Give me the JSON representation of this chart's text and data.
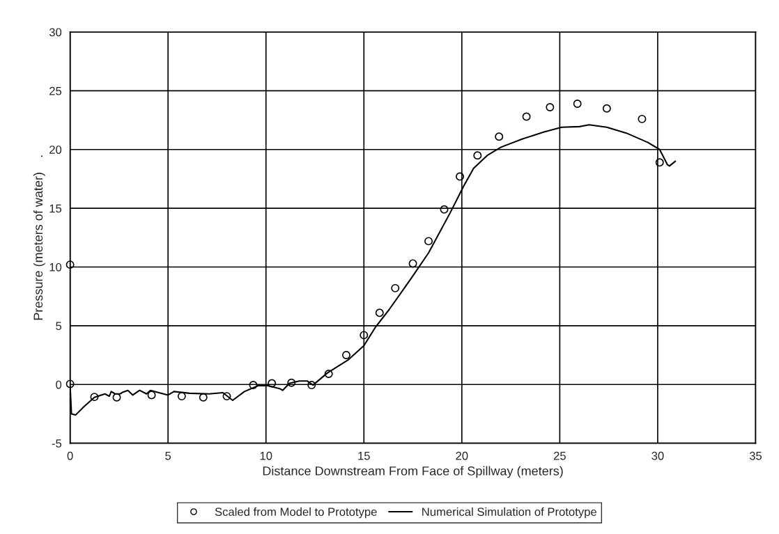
{
  "chart_data": {
    "type": "scatter",
    "xlabel": "Distance Downstream From Face of Spillway (meters)",
    "ylabel": "Pressure (meters of water)    .",
    "xlim": [
      0,
      35
    ],
    "xticks": [
      0,
      5,
      10,
      15,
      20,
      25,
      30,
      35
    ],
    "ylim": [
      -5,
      30
    ],
    "yticks": [
      -5,
      0,
      5,
      10,
      15,
      20,
      25,
      30
    ],
    "grid": true,
    "legend": "bottom",
    "series": [
      {
        "name": "Scaled from Model to Prototype",
        "marker": "circle",
        "color": "#000000",
        "x": [
          0,
          0,
          1.24,
          2.38,
          4.16,
          5.7,
          6.8,
          8.0,
          9.35,
          10.3,
          11.3,
          12.33,
          13.2,
          14.1,
          15.0,
          15.8,
          16.6,
          17.5,
          18.3,
          19.1,
          19.9,
          20.8,
          21.9,
          23.3,
          24.5,
          25.9,
          27.4,
          29.2,
          30.1
        ],
        "values": [
          10.2,
          0.05,
          -1.06,
          -1.1,
          -0.9,
          -1.0,
          -1.1,
          -1.0,
          -0.05,
          0.1,
          0.15,
          -0.05,
          0.9,
          2.5,
          4.2,
          6.1,
          8.2,
          10.3,
          12.2,
          14.9,
          17.7,
          19.5,
          21.1,
          22.8,
          23.6,
          23.9,
          23.5,
          22.6,
          18.9
        ]
      },
      {
        "name": "Numerical Simulation of Prototype",
        "type": "line",
        "marker": "none",
        "line_style": "solid",
        "color": "#000000",
        "x": [
          0,
          0.07,
          0.28,
          0.7,
          1.24,
          1.78,
          2.0,
          2.1,
          2.3,
          2.56,
          2.7,
          2.95,
          3.2,
          3.55,
          3.9,
          4.1,
          5.0,
          5.3,
          6.1,
          7.1,
          7.8,
          8.3,
          8.9,
          9.6,
          10.1,
          10.7,
          10.85,
          11.2,
          11.7,
          12.1,
          12.4,
          13.15,
          14.2,
          15.0,
          15.6,
          16.3,
          17.4,
          18.3,
          19.4,
          20.1,
          20.6,
          21.3,
          22.0,
          23.1,
          24.2,
          25.1,
          26.0,
          26.5,
          27.4,
          28.4,
          29.5,
          30.1,
          30.5,
          30.6,
          30.9
        ],
        "values": [
          -0.1,
          -2.5,
          -2.6,
          -1.9,
          -1.1,
          -0.8,
          -1.0,
          -0.6,
          -0.8,
          -0.8,
          -0.65,
          -0.5,
          -0.9,
          -0.5,
          -0.8,
          -0.5,
          -0.9,
          -0.6,
          -0.75,
          -0.8,
          -0.7,
          -1.35,
          -0.6,
          -0.1,
          -0.1,
          -0.35,
          -0.5,
          0.1,
          0.3,
          0.3,
          -0.05,
          1.0,
          2.1,
          3.3,
          4.9,
          6.4,
          9.0,
          11.2,
          14.6,
          16.9,
          18.4,
          19.5,
          20.2,
          20.9,
          21.5,
          21.9,
          21.95,
          22.1,
          21.9,
          21.4,
          20.6,
          20.0,
          18.7,
          18.6,
          19.0
        ]
      }
    ]
  }
}
